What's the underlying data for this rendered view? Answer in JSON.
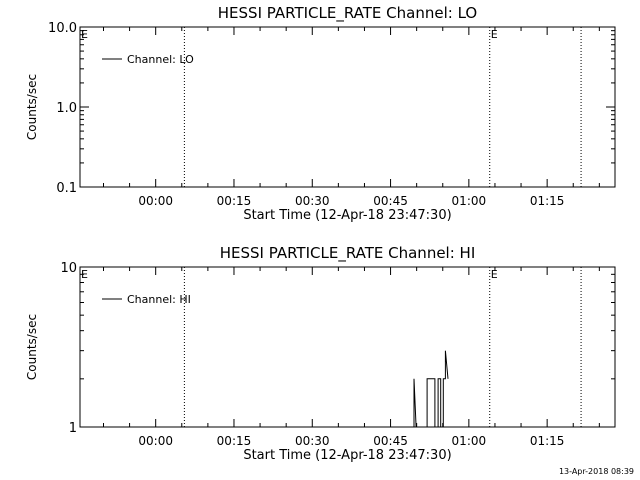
{
  "chart_data": [
    {
      "type": "line",
      "title": "HESSI PARTICLE_RATE Channel: LO",
      "xlabel": "Start Time (12-Apr-18 23:47:30)",
      "ylabel": "Counts/sec",
      "y_scale": "log",
      "ylim": [
        0.1,
        10.0
      ],
      "y_ticks": [
        "10.0",
        "1.0",
        "0.1"
      ],
      "y_tick_values": [
        10.0,
        1.0,
        0.1
      ],
      "x_unit": "minutes from 00:00",
      "xlim": [
        -14.5,
        88.0
      ],
      "x_ticks": [
        "00:00",
        "00:15",
        "00:30",
        "00:45",
        "01:00",
        "01:15"
      ],
      "x_tick_values": [
        0,
        15,
        30,
        45,
        60,
        75
      ],
      "vlines": [
        5.5,
        64.0,
        81.5
      ],
      "markers": [
        {
          "text": "E",
          "x": -14.5
        },
        {
          "text": "E",
          "x": 64.0
        }
      ],
      "legend": {
        "placement": "top-left",
        "entries": [
          "Channel: LO"
        ]
      },
      "series": [
        {
          "name": "Channel: LO",
          "points": []
        }
      ]
    },
    {
      "type": "line",
      "title": "HESSI PARTICLE_RATE Channel: HI",
      "xlabel": "Start Time (12-Apr-18 23:47:30)",
      "ylabel": "Counts/sec",
      "y_scale": "log",
      "ylim": [
        1,
        10
      ],
      "y_ticks": [
        "10",
        "1"
      ],
      "y_tick_values": [
        10,
        1
      ],
      "x_unit": "minutes from 00:00",
      "xlim": [
        -14.5,
        88.0
      ],
      "x_ticks": [
        "00:00",
        "00:15",
        "00:30",
        "00:45",
        "01:00",
        "01:15"
      ],
      "x_tick_values": [
        0,
        15,
        30,
        45,
        60,
        75
      ],
      "vlines": [
        5.5,
        64.0,
        81.5
      ],
      "markers": [
        {
          "text": "E",
          "x": -14.5
        },
        {
          "text": "E",
          "x": 64.0
        }
      ],
      "legend": {
        "placement": "top-left",
        "entries": [
          "Channel: HI"
        ]
      },
      "series": [
        {
          "name": "Channel: HI",
          "points": [
            [
              49.5,
              1.0
            ],
            [
              49.5,
              2.0
            ],
            [
              49.9,
              1.0
            ],
            [
              52.0,
              1.0
            ],
            [
              52.0,
              2.0
            ],
            [
              53.5,
              2.0
            ],
            [
              53.5,
              1.0
            ],
            [
              54.1,
              1.0
            ],
            [
              54.1,
              2.0
            ],
            [
              54.6,
              2.0
            ],
            [
              54.6,
              1.0
            ],
            [
              55.1,
              1.0
            ],
            [
              55.1,
              2.0
            ],
            [
              55.5,
              2.0
            ],
            [
              55.5,
              3.0
            ],
            [
              56.0,
              2.0
            ]
          ]
        }
      ]
    }
  ],
  "footer": {
    "timestamp": "13-Apr-2018 08:39"
  }
}
